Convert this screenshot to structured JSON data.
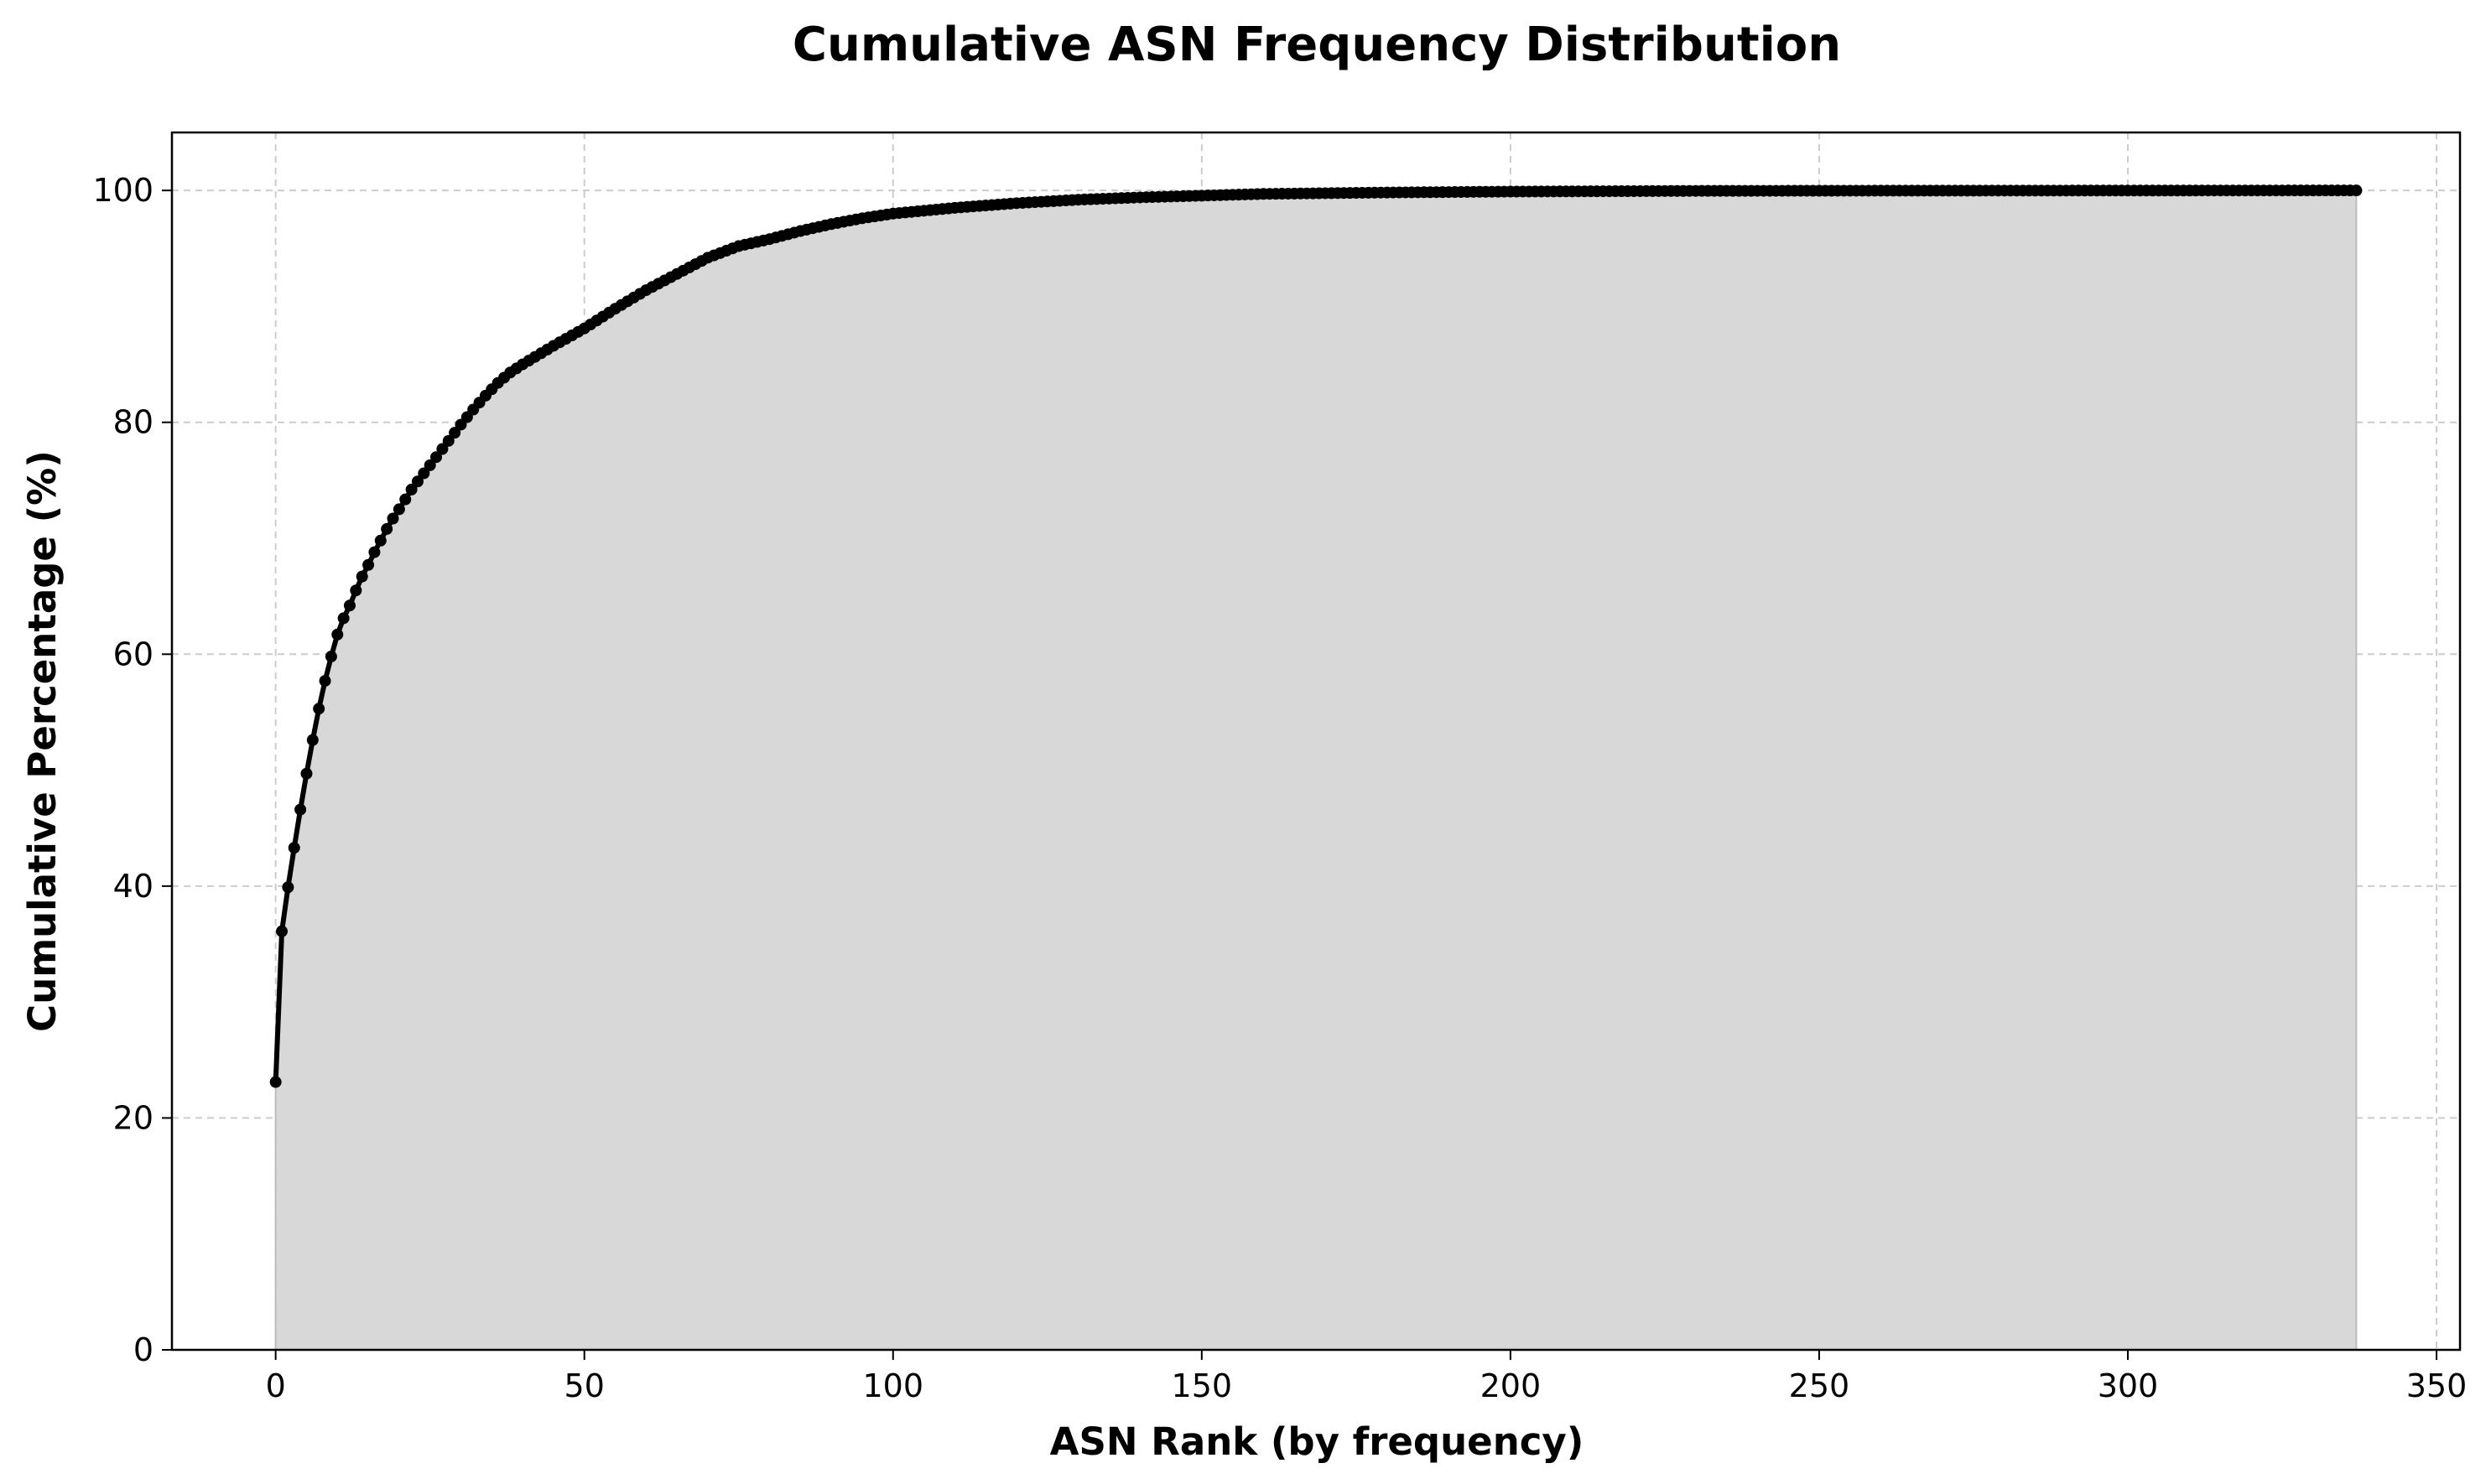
{
  "chart_data": {
    "type": "area",
    "title": "Cumulative ASN Frequency Distribution",
    "xlabel": "ASN Rank (by frequency)",
    "ylabel": "Cumulative Percentage (%)",
    "xlim": [
      -16.8,
      353.8
    ],
    "ylim": [
      0,
      105
    ],
    "x_ticks": [
      0,
      50,
      100,
      150,
      200,
      250,
      300,
      350
    ],
    "y_ticks": [
      0,
      20,
      40,
      60,
      80,
      100
    ],
    "grid": true,
    "line_color": "#000000",
    "fill_color": "#d8d8d8",
    "series": [
      {
        "x_start": 0,
        "x_end": 337,
        "points": [
          [
            0,
            23.1
          ],
          [
            1,
            36.1
          ],
          [
            2,
            39.9
          ],
          [
            3,
            43.3
          ],
          [
            4,
            46.6
          ],
          [
            5,
            49.7
          ],
          [
            6,
            52.6
          ],
          [
            7,
            55.3
          ],
          [
            8,
            57.7
          ],
          [
            9,
            59.8
          ],
          [
            10,
            61.7
          ],
          [
            11,
            63.1
          ],
          [
            12,
            64.2
          ],
          [
            13,
            65.5
          ],
          [
            14,
            66.7
          ],
          [
            15,
            67.7
          ],
          [
            16,
            68.8
          ],
          [
            17,
            69.8
          ],
          [
            18,
            70.8
          ],
          [
            19,
            71.7
          ],
          [
            20,
            72.5
          ],
          [
            22,
            74.2
          ],
          [
            24,
            75.6
          ],
          [
            26,
            77.0
          ],
          [
            28,
            78.4
          ],
          [
            30,
            79.8
          ],
          [
            32,
            81.1
          ],
          [
            34,
            82.3
          ],
          [
            36,
            83.4
          ],
          [
            38,
            84.3
          ],
          [
            40,
            85.0
          ],
          [
            45,
            86.6
          ],
          [
            50,
            88.1
          ],
          [
            55,
            89.8
          ],
          [
            60,
            91.4
          ],
          [
            65,
            92.8
          ],
          [
            70,
            94.2
          ],
          [
            75,
            95.2
          ],
          [
            80,
            95.8
          ],
          [
            85,
            96.5
          ],
          [
            90,
            97.1
          ],
          [
            95,
            97.6
          ],
          [
            100,
            98.0
          ],
          [
            110,
            98.5
          ],
          [
            120,
            98.9
          ],
          [
            130,
            99.2
          ],
          [
            140,
            99.4
          ],
          [
            150,
            99.55
          ],
          [
            160,
            99.7
          ],
          [
            180,
            99.82
          ],
          [
            200,
            99.9
          ],
          [
            230,
            99.96
          ],
          [
            260,
            99.98
          ],
          [
            300,
            99.99
          ],
          [
            337,
            100.0
          ]
        ]
      }
    ]
  }
}
